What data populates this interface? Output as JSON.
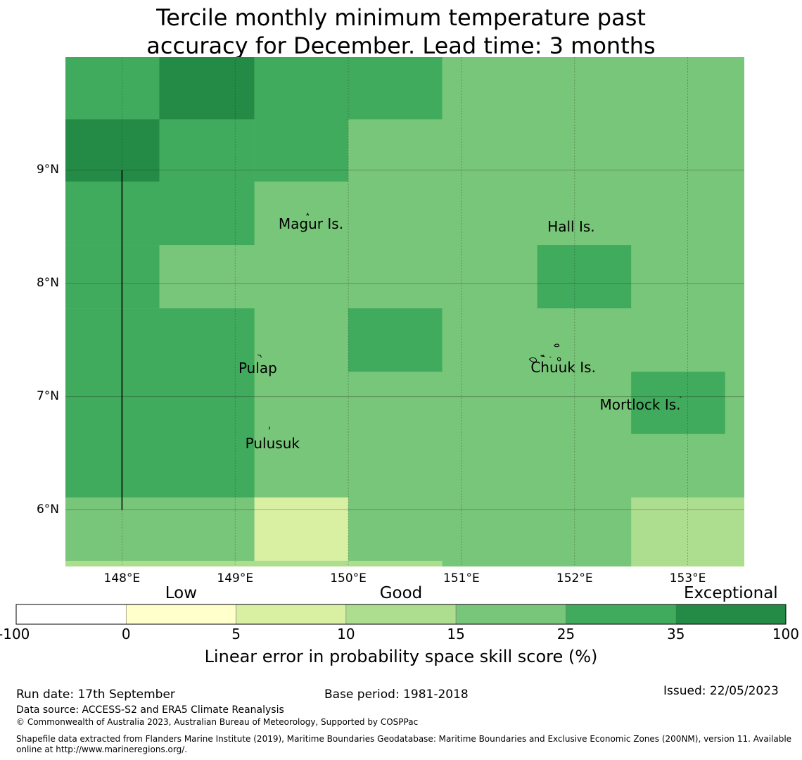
{
  "title": {
    "line1": "Tercile monthly minimum temperature past",
    "line2": "accuracy for December. Lead time: 3 months"
  },
  "colors": {
    "exceptional": "#238b45",
    "bin_25_35": "#41ab5d",
    "bin_15_25": "#78c679",
    "bin_10_15": "#addd8e",
    "bin_5_10": "#d9f0a3",
    "bin_0_5": "#ffffcc",
    "bin_neg": "#ffffff"
  },
  "map": {
    "lon_range": [
      147.5,
      153.5
    ],
    "lat_range": [
      5.5,
      10.0
    ],
    "lat_ticks": [
      {
        "value": 9,
        "label": "9°N"
      },
      {
        "value": 8,
        "label": "8°N"
      },
      {
        "value": 7,
        "label": "7°N"
      },
      {
        "value": 6,
        "label": "6°N"
      }
    ],
    "lon_ticks": [
      {
        "value": 148,
        "label": "148°E"
      },
      {
        "value": 149,
        "label": "149°E"
      },
      {
        "value": 150,
        "label": "150°E"
      },
      {
        "value": 151,
        "label": "151°E"
      },
      {
        "value": 152,
        "label": "152°E"
      },
      {
        "value": 153,
        "label": "153°E"
      }
    ],
    "grid_cells": [
      {
        "lon": [
          147.5,
          148.33
        ],
        "lat": [
          9.45,
          10.0
        ],
        "cat": "bin_25_35"
      },
      {
        "lon": [
          148.33,
          149.17
        ],
        "lat": [
          9.45,
          10.0
        ],
        "cat": "exceptional"
      },
      {
        "lon": [
          149.17,
          150.0
        ],
        "lat": [
          9.45,
          10.0
        ],
        "cat": "bin_25_35"
      },
      {
        "lon": [
          150.0,
          150.83
        ],
        "lat": [
          9.45,
          10.0
        ],
        "cat": "bin_25_35"
      },
      {
        "lon": [
          147.5,
          148.33
        ],
        "lat": [
          8.9,
          9.45
        ],
        "cat": "exceptional"
      },
      {
        "lon": [
          148.33,
          149.17
        ],
        "lat": [
          8.9,
          9.45
        ],
        "cat": "bin_25_35"
      },
      {
        "lon": [
          149.17,
          150.0
        ],
        "lat": [
          8.9,
          9.45
        ],
        "cat": "bin_25_35"
      },
      {
        "lon": [
          147.5,
          149.17
        ],
        "lat": [
          8.34,
          8.9
        ],
        "cat": "bin_25_35"
      },
      {
        "lon": [
          147.5,
          148.33
        ],
        "lat": [
          7.78,
          8.34
        ],
        "cat": "bin_25_35"
      },
      {
        "lon": [
          147.5,
          149.17
        ],
        "lat": [
          6.11,
          7.78
        ],
        "cat": "bin_25_35"
      },
      {
        "lon": [
          150.0,
          150.83
        ],
        "lat": [
          7.22,
          7.78
        ],
        "cat": "bin_25_35"
      },
      {
        "lon": [
          151.67,
          152.5
        ],
        "lat": [
          7.78,
          8.34
        ],
        "cat": "bin_25_35"
      },
      {
        "lon": [
          152.5,
          153.33
        ],
        "lat": [
          6.67,
          7.22
        ],
        "cat": "bin_25_35"
      },
      {
        "lon": [
          149.17,
          150.0
        ],
        "lat": [
          5.55,
          6.11
        ],
        "cat": "bin_5_10"
      },
      {
        "lon": [
          152.5,
          153.5
        ],
        "lat": [
          5.55,
          6.11
        ],
        "cat": "bin_10_15"
      },
      {
        "lon": [
          147.5,
          150.83
        ],
        "lat": [
          5.5,
          5.55
        ],
        "cat": "bin_10_15"
      },
      {
        "lon": [
          152.5,
          153.5
        ],
        "lat": [
          5.5,
          5.55
        ],
        "cat": "bin_10_15"
      }
    ],
    "default_cat": "bin_15_25",
    "boundary_line": {
      "lon": 148.0,
      "lat": [
        6.0,
        9.0
      ]
    },
    "islands": [
      {
        "name": "Magur Is.",
        "lon": 149.67,
        "lat": 8.53
      },
      {
        "name": "Hall Is.",
        "lon": 151.97,
        "lat": 8.5
      },
      {
        "name": "Pulap",
        "lon": 149.2,
        "lat": 7.25
      },
      {
        "name": "Chuuk Is.",
        "lon": 151.9,
        "lat": 7.26
      },
      {
        "name": "Mortlock Is.",
        "lon": 152.58,
        "lat": 6.93
      },
      {
        "name": "Pulusuk",
        "lon": 149.33,
        "lat": 6.59
      }
    ]
  },
  "colorbar": {
    "categories": [
      {
        "label": "Low",
        "bin": 1
      },
      {
        "label": "Good",
        "bin": 3
      },
      {
        "label": "Exceptional",
        "bin": 6
      }
    ],
    "bins": [
      "bin_neg",
      "bin_0_5",
      "bin_5_10",
      "bin_10_15",
      "bin_15_25",
      "bin_25_35",
      "exceptional"
    ],
    "ticks": [
      "-100",
      "0",
      "5",
      "10",
      "15",
      "25",
      "35",
      "100"
    ],
    "title": "Linear error in probability space skill score (%)"
  },
  "footer": {
    "run_date": "Run date: 17th September",
    "base_period": "Base period: 1981-2018",
    "issued": "Issued: 22/05/2023",
    "data_source": "Data source: ACCESS-S2 and ERA5 Climate Reanalysis",
    "copyright": "© Commonwealth of Australia 2023, Australian Bureau of Meteorology, Supported by COSPPac",
    "shapefile": "Shapefile data extracted from Flanders Marine Institute (2019), Maritime Boundaries Geodatabase: Maritime Boundaries and Exclusive Economic Zones (200NM), version 11. Available online at http://www.marineregions.org/."
  }
}
